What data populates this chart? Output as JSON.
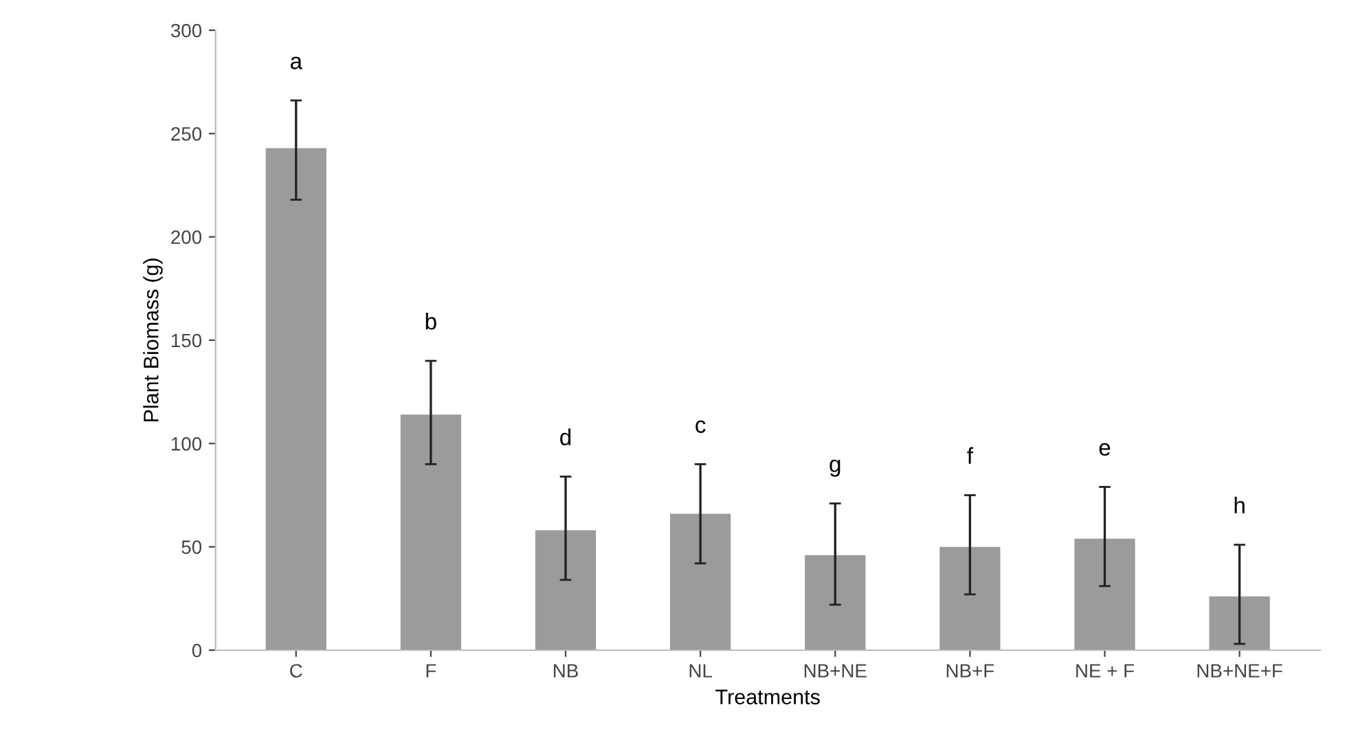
{
  "chart_data": {
    "type": "bar",
    "xlabel": "Treatments",
    "ylabel": "Plant Biomass (g)",
    "categories": [
      "C",
      "F",
      "NB",
      "NL",
      "NB+NE",
      "NB+F",
      "NE + F",
      "NB+NE+F"
    ],
    "values": [
      243,
      114,
      58,
      66,
      46,
      50,
      54,
      26
    ],
    "errors": [
      [
        218,
        266
      ],
      [
        90,
        140
      ],
      [
        34,
        84
      ],
      [
        42,
        90
      ],
      [
        22,
        71
      ],
      [
        27,
        75
      ],
      [
        31,
        79
      ],
      [
        3,
        51
      ]
    ],
    "color": "#9b9b9b",
    "ylim": [
      0,
      300
    ],
    "yticks": [
      0,
      50,
      100,
      150,
      200,
      250,
      300
    ],
    "grid": false,
    "annotations": [
      "a",
      "b",
      "d",
      "c",
      "g",
      "f",
      "e",
      "h"
    ]
  }
}
